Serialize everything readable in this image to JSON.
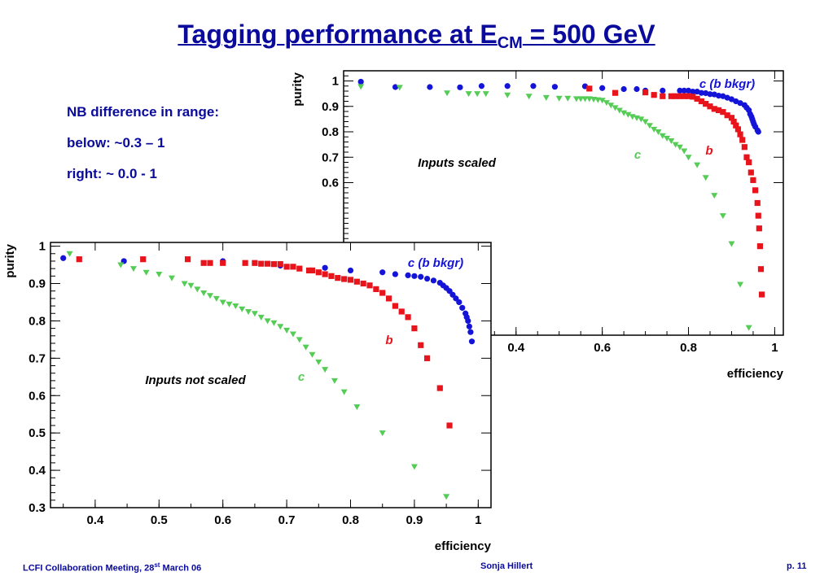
{
  "title": {
    "main": "Tagging performance at E",
    "sub": "CM",
    "rest": " = 500 GeV"
  },
  "notes": [
    "NB difference in range:",
    "below: ~0.3 – 1",
    "right: ~ 0.0 - 1"
  ],
  "footer": {
    "left_main": "LCFI Collaboration Meeting, 28",
    "left_sup": "st",
    "left_rest": " March 06",
    "center": "Sonja Hillert",
    "right": "p. 11"
  },
  "colors": {
    "b": "#e8141c",
    "c": "#55cc55",
    "c_bkgr": "#1414d8"
  },
  "chart_data": [
    {
      "type": "scatter",
      "annotation": "Inputs scaled",
      "xlabel": "efficiency",
      "ylabel": "purity",
      "xlim": [
        0.0,
        1.02
      ],
      "ylim": [
        0.0,
        1.04
      ],
      "xticks": [
        "0.4",
        "0.6",
        "0.8",
        "1"
      ],
      "yticks": [
        "1",
        "0.9",
        "0.8",
        "0.7",
        "0.6"
      ],
      "series": [
        {
          "name": "c (b bkgr)",
          "marker": "circle",
          "color": "#1414d8",
          "x": [
            0.04,
            0.12,
            0.2,
            0.27,
            0.32,
            0.38,
            0.44,
            0.49,
            0.56,
            0.6,
            0.65,
            0.68,
            0.7,
            0.74,
            0.78,
            0.79,
            0.8,
            0.81,
            0.82,
            0.83,
            0.84,
            0.85,
            0.86,
            0.87,
            0.88,
            0.89,
            0.9,
            0.91,
            0.92,
            0.93,
            0.935,
            0.94,
            0.943,
            0.946,
            0.948,
            0.95,
            0.952,
            0.955,
            0.96,
            0.962
          ],
          "y": [
            0.997,
            0.976,
            0.976,
            0.975,
            0.98,
            0.98,
            0.98,
            0.977,
            0.979,
            0.972,
            0.968,
            0.968,
            0.962,
            0.962,
            0.962,
            0.962,
            0.962,
            0.958,
            0.958,
            0.953,
            0.952,
            0.948,
            0.947,
            0.942,
            0.94,
            0.934,
            0.928,
            0.92,
            0.913,
            0.905,
            0.895,
            0.885,
            0.87,
            0.86,
            0.85,
            0.84,
            0.83,
            0.82,
            0.806,
            0.8
          ]
        },
        {
          "name": "b",
          "marker": "square",
          "color": "#e8141c",
          "x": [
            0.57,
            0.63,
            0.7,
            0.72,
            0.74,
            0.76,
            0.77,
            0.78,
            0.79,
            0.8,
            0.81,
            0.82,
            0.83,
            0.84,
            0.85,
            0.86,
            0.87,
            0.88,
            0.89,
            0.9,
            0.905,
            0.91,
            0.915,
            0.92,
            0.925,
            0.93,
            0.935,
            0.94,
            0.945,
            0.95,
            0.955,
            0.96,
            0.962,
            0.964,
            0.966,
            0.968,
            0.97
          ],
          "y": [
            0.97,
            0.953,
            0.955,
            0.945,
            0.94,
            0.94,
            0.94,
            0.94,
            0.94,
            0.94,
            0.938,
            0.93,
            0.92,
            0.91,
            0.9,
            0.89,
            0.885,
            0.878,
            0.865,
            0.855,
            0.84,
            0.825,
            0.81,
            0.79,
            0.768,
            0.74,
            0.7,
            0.68,
            0.64,
            0.61,
            0.57,
            0.52,
            0.47,
            0.42,
            0.35,
            0.26,
            0.16
          ]
        },
        {
          "name": "c",
          "marker": "triangle",
          "color": "#55cc55",
          "x": [
            0.04,
            0.13,
            0.24,
            0.29,
            0.31,
            0.33,
            0.38,
            0.43,
            0.47,
            0.5,
            0.52,
            0.54,
            0.55,
            0.56,
            0.57,
            0.58,
            0.59,
            0.6,
            0.61,
            0.62,
            0.63,
            0.64,
            0.65,
            0.66,
            0.67,
            0.68,
            0.69,
            0.7,
            0.71,
            0.72,
            0.73,
            0.74,
            0.75,
            0.76,
            0.77,
            0.78,
            0.79,
            0.8,
            0.82,
            0.84,
            0.86,
            0.88,
            0.9,
            0.92,
            0.94
          ],
          "y": [
            0.978,
            0.975,
            0.953,
            0.95,
            0.95,
            0.95,
            0.945,
            0.94,
            0.935,
            0.932,
            0.932,
            0.93,
            0.93,
            0.93,
            0.93,
            0.928,
            0.926,
            0.924,
            0.915,
            0.905,
            0.895,
            0.885,
            0.875,
            0.868,
            0.86,
            0.855,
            0.85,
            0.84,
            0.825,
            0.81,
            0.8,
            0.785,
            0.775,
            0.765,
            0.75,
            0.74,
            0.725,
            0.7,
            0.67,
            0.62,
            0.55,
            0.47,
            0.36,
            0.2,
            0.03
          ]
        }
      ]
    },
    {
      "type": "scatter",
      "annotation": "Inputs not scaled",
      "xlabel": "efficiency",
      "ylabel": "purity",
      "xlim": [
        0.33,
        1.02
      ],
      "ylim": [
        0.3,
        1.01
      ],
      "xticks": [
        "0.4",
        "0.5",
        "0.6",
        "0.7",
        "0.8",
        "0.9",
        "1"
      ],
      "yticks": [
        "1",
        "0.9",
        "0.8",
        "0.7",
        "0.6",
        "0.5",
        "0.4",
        "0.3"
      ],
      "series": [
        {
          "name": "c (b bkgr)",
          "marker": "circle",
          "color": "#1414d8",
          "x": [
            0.35,
            0.445,
            0.6,
            0.69,
            0.76,
            0.8,
            0.85,
            0.87,
            0.89,
            0.9,
            0.91,
            0.92,
            0.93,
            0.94,
            0.945,
            0.95,
            0.955,
            0.96,
            0.965,
            0.97,
            0.975,
            0.98,
            0.982,
            0.984,
            0.986,
            0.988,
            0.99
          ],
          "y": [
            0.968,
            0.96,
            0.96,
            0.948,
            0.942,
            0.935,
            0.93,
            0.925,
            0.922,
            0.92,
            0.918,
            0.913,
            0.908,
            0.902,
            0.895,
            0.888,
            0.88,
            0.87,
            0.86,
            0.85,
            0.835,
            0.82,
            0.81,
            0.8,
            0.785,
            0.77,
            0.745
          ]
        },
        {
          "name": "b",
          "marker": "square",
          "color": "#e8141c",
          "x": [
            0.375,
            0.475,
            0.545,
            0.57,
            0.58,
            0.6,
            0.635,
            0.65,
            0.66,
            0.67,
            0.68,
            0.69,
            0.7,
            0.71,
            0.72,
            0.735,
            0.74,
            0.75,
            0.76,
            0.77,
            0.78,
            0.79,
            0.8,
            0.81,
            0.82,
            0.83,
            0.84,
            0.85,
            0.86,
            0.87,
            0.88,
            0.89,
            0.9,
            0.91,
            0.92,
            0.94,
            0.955
          ],
          "y": [
            0.965,
            0.965,
            0.965,
            0.955,
            0.955,
            0.955,
            0.955,
            0.955,
            0.953,
            0.953,
            0.952,
            0.952,
            0.945,
            0.945,
            0.94,
            0.935,
            0.935,
            0.93,
            0.925,
            0.92,
            0.915,
            0.912,
            0.91,
            0.905,
            0.9,
            0.895,
            0.885,
            0.875,
            0.86,
            0.84,
            0.825,
            0.81,
            0.78,
            0.735,
            0.7,
            0.62,
            0.52
          ]
        },
        {
          "name": "c",
          "marker": "triangle",
          "color": "#55cc55",
          "x": [
            0.36,
            0.44,
            0.46,
            0.48,
            0.5,
            0.52,
            0.54,
            0.55,
            0.56,
            0.57,
            0.58,
            0.59,
            0.6,
            0.61,
            0.62,
            0.63,
            0.64,
            0.65,
            0.66,
            0.67,
            0.68,
            0.69,
            0.7,
            0.71,
            0.72,
            0.73,
            0.74,
            0.75,
            0.76,
            0.775,
            0.79,
            0.81,
            0.85,
            0.9,
            0.95
          ],
          "y": [
            0.98,
            0.95,
            0.94,
            0.93,
            0.925,
            0.915,
            0.9,
            0.895,
            0.885,
            0.875,
            0.868,
            0.86,
            0.85,
            0.845,
            0.84,
            0.832,
            0.825,
            0.82,
            0.81,
            0.8,
            0.795,
            0.785,
            0.775,
            0.765,
            0.75,
            0.73,
            0.71,
            0.69,
            0.67,
            0.64,
            0.61,
            0.57,
            0.5,
            0.41,
            0.33
          ]
        }
      ]
    }
  ]
}
